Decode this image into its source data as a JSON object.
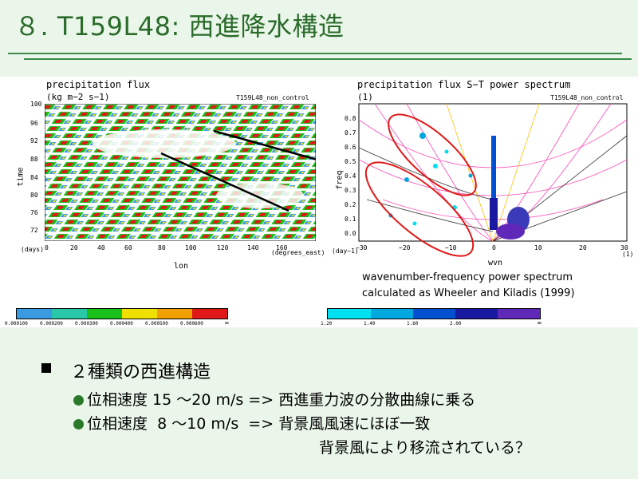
{
  "slide": {
    "title": "８. T159L48: 西進降水構造"
  },
  "left_panel": {
    "title": "precipitation flux",
    "units": "(kg m−2 s−1)",
    "run_label": "T159L48_non_control",
    "ylabel": "time",
    "xlabel": "lon",
    "y_unit": "(days)",
    "x_unit": "(degrees_east)",
    "y_ticks": [
      "100",
      "96",
      "92",
      "88",
      "84",
      "80",
      "76",
      "72"
    ],
    "x_ticks": [
      "0",
      "20",
      "40",
      "60",
      "80",
      "100",
      "120",
      "140",
      "160"
    ],
    "colorbar_labels": [
      "0.000100",
      "0.000200",
      "0.000300",
      "0.000400",
      "0.000500",
      "0.000600",
      "∞"
    ],
    "colorbar_colors": [
      "#3a9be0",
      "#28c8a8",
      "#18c018",
      "#f0e000",
      "#f0a000",
      "#e01818"
    ]
  },
  "right_panel": {
    "title": "precipitation flux S−T power spectrum",
    "units": "(1)",
    "run_label": "T159L48_non_control",
    "ylabel": "freq",
    "xlabel": "wvn",
    "y_unit": "(day−1)",
    "x_unit": "(1)",
    "y_ticks": [
      "0.8",
      "0.7",
      "0.6",
      "0.5",
      "0.4",
      "0.3",
      "0.2",
      "0.1",
      "0.0"
    ],
    "x_ticks": [
      "−30",
      "−20",
      "−10",
      "0",
      "10",
      "20",
      "30"
    ],
    "colorbar_labels": [
      "1.20",
      "1.40",
      "1.60",
      "2.00",
      "∞"
    ],
    "colorbar_colors": [
      "#00e0f0",
      "#00a8e0",
      "#0050d0",
      "#1818a0",
      "#6028b8"
    ]
  },
  "caption": {
    "line1": "wavenumber-frequency power spectrum",
    "line2": "calculated as Wheeler and Kiladis (1999)"
  },
  "bullets": {
    "heading": "２種類の西進構造",
    "item1": "位相速度 15 ～20 m/s => 西進重力波の分散曲線に乗る",
    "item2": "位相速度  8 ～10 m/s  => 背景風風速にほぼ一致",
    "item3": "背景風により移流されている？"
  }
}
